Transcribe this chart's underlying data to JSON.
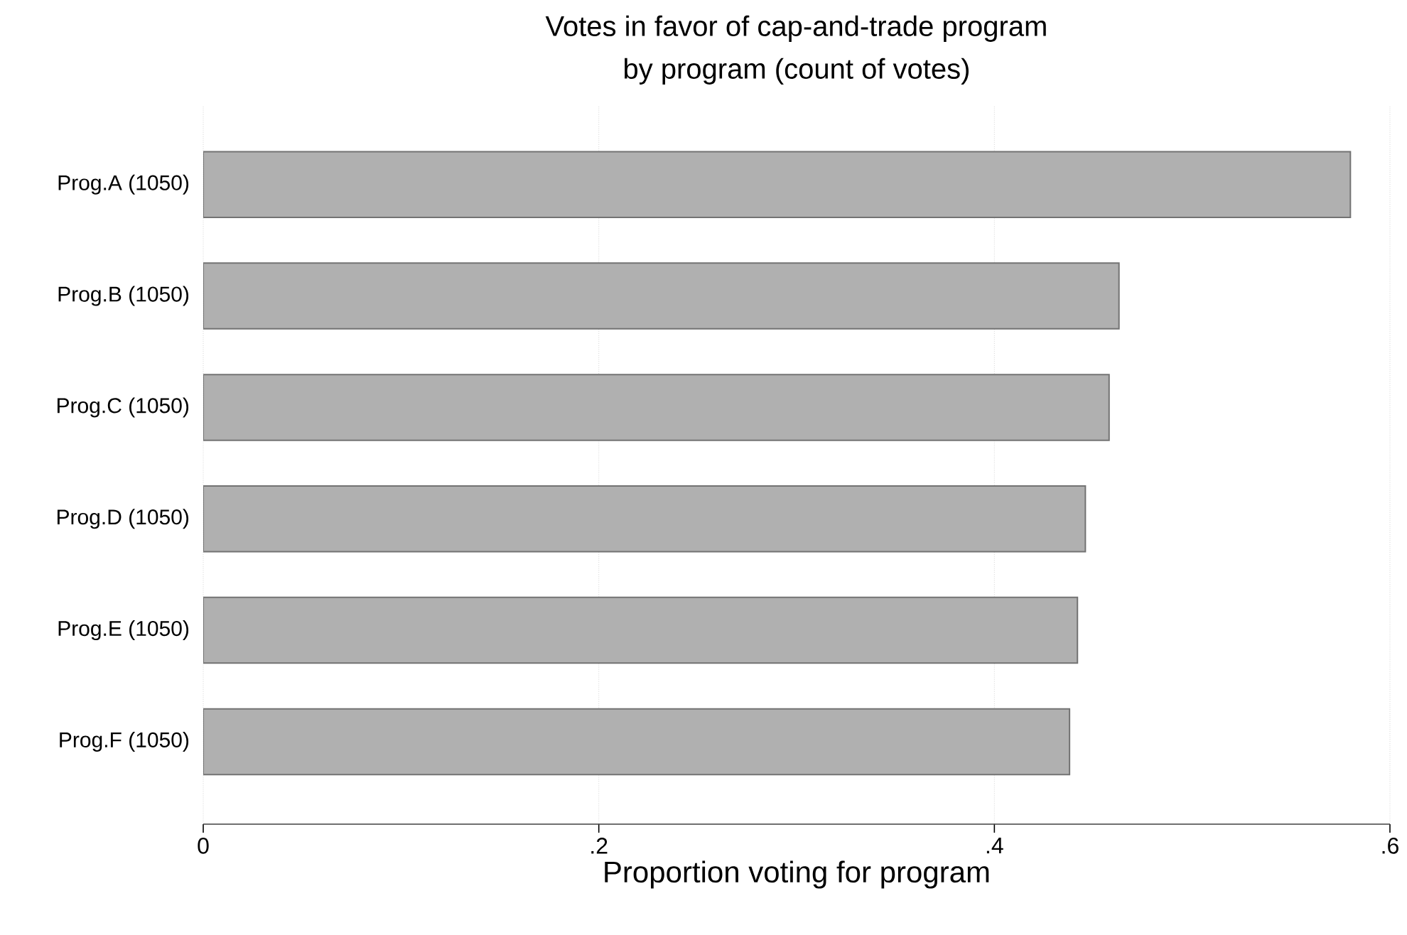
{
  "chart_data": {
    "type": "bar",
    "orientation": "horizontal",
    "title": "Votes in favor of cap-and-trade program",
    "subtitle": "by program (count of votes)",
    "xlabel": "Proportion voting for program",
    "categories": [
      "Prog.A (1050)",
      "Prog.B (1050)",
      "Prog.C (1050)",
      "Prog.D (1050)",
      "Prog.E (1050)",
      "Prog.F (1050)"
    ],
    "values": [
      0.58,
      0.463,
      0.458,
      0.446,
      0.442,
      0.438
    ],
    "color": "#b0b0b0",
    "xlim": [
      0,
      0.6
    ],
    "xticks": [
      0,
      {
        "value": 0.2,
        "label": ".2"
      },
      {
        "value": 0.4,
        "label": ".4"
      },
      {
        "value": 0.6,
        "label": ".6"
      }
    ],
    "grid": "x"
  }
}
